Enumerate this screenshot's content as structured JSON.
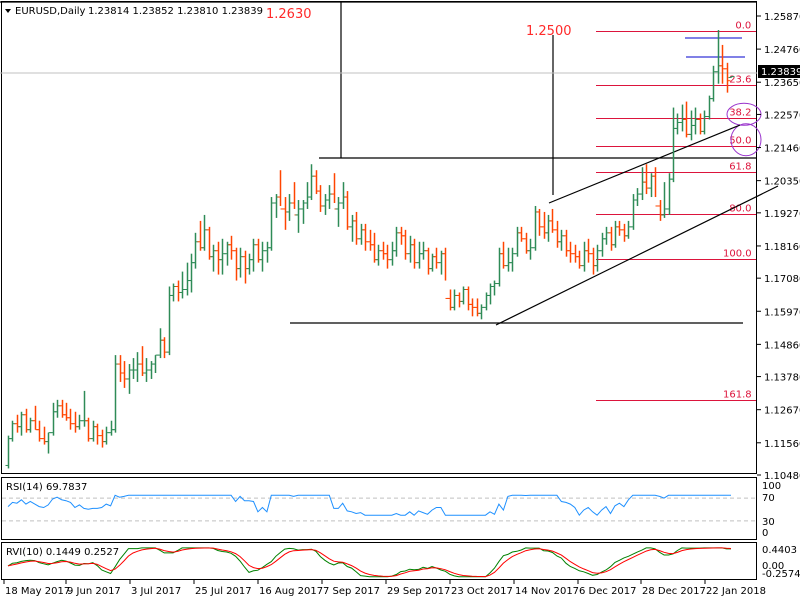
{
  "header": {
    "symbol": "EURUSD,Daily",
    "ohlc": "1.23814 1.23852 1.23810 1.23839"
  },
  "annotations": {
    "level_1": "1.2630",
    "level_2": "1.2500"
  },
  "colors": {
    "bull": "#2e8b57",
    "bear": "#ff4500",
    "fib": "#dc143c",
    "rsi": "#1e90ff",
    "rvi_main": "#008000",
    "rvi_signal": "#ff0000",
    "ellipse": "#9932cc",
    "blue_lines": "#0000cd"
  },
  "price_axis": {
    "ticks": [
      "1.25870",
      "1.24760",
      "1.23650",
      "1.22570",
      "1.21460",
      "1.20350",
      "1.19270",
      "1.18160",
      "1.17080",
      "1.15970",
      "1.14860",
      "1.13780",
      "1.12670",
      "1.11560",
      "1.10480"
    ],
    "current_price": "1.23839"
  },
  "fib_levels": [
    "0.0",
    "23.6",
    "38.2",
    "50.0",
    "61.8",
    "80.0",
    "100.0",
    "161.8"
  ],
  "rsi": {
    "label": "RSI(14) 69.7837",
    "ticks": [
      "100",
      "70",
      "30",
      "0"
    ]
  },
  "rvi": {
    "label": "RVI(10) 0.1449 0.2527",
    "ticks": [
      "0.4403",
      "0.00",
      "-0.2574"
    ]
  },
  "time_axis": {
    "labels": [
      "18 May 2017",
      "9 Jun 2017",
      "3 Jul 2017",
      "25 Jul 2017",
      "16 Aug 2017",
      "7 Sep 2017",
      "29 Sep 2017",
      "23 Oct 2017",
      "14 Nov 2017",
      "6 Dec 2017",
      "28 Dec 2017",
      "22 Jan 2018"
    ]
  },
  "chart_data": {
    "type": "ohlc",
    "title": "EURUSD,Daily 1.23814 1.23852 1.23810 1.23839",
    "xlabel": "",
    "ylabel": "",
    "ylim": [
      1.1048,
      1.2587
    ],
    "categories": [
      "18 May 2017",
      "9 Jun 2017",
      "3 Jul 2017",
      "25 Jul 2017",
      "16 Aug 2017",
      "7 Sep 2017",
      "29 Sep 2017",
      "23 Oct 2017",
      "14 Nov 2017",
      "6 Dec 2017",
      "28 Dec 2017",
      "22 Jan 2018"
    ],
    "approx_close_at_labels": [
      1.117,
      1.12,
      1.142,
      1.172,
      1.182,
      1.205,
      1.18,
      1.176,
      1.18,
      1.177,
      1.194,
      1.238
    ],
    "bars": [
      [
        1.108,
        1.118,
        1.107,
        1.117
      ],
      [
        1.117,
        1.123,
        1.116,
        1.122
      ],
      [
        1.122,
        1.125,
        1.119,
        1.121
      ],
      [
        1.121,
        1.126,
        1.118,
        1.125
      ],
      [
        1.125,
        1.127,
        1.119,
        1.12
      ],
      [
        1.12,
        1.124,
        1.119,
        1.123
      ],
      [
        1.123,
        1.128,
        1.12,
        1.12
      ],
      [
        1.12,
        1.123,
        1.116,
        1.117
      ],
      [
        1.117,
        1.121,
        1.115,
        1.116
      ],
      [
        1.116,
        1.119,
        1.112,
        1.119
      ],
      [
        1.119,
        1.129,
        1.118,
        1.126
      ],
      [
        1.126,
        1.13,
        1.124,
        1.128
      ],
      [
        1.128,
        1.13,
        1.124,
        1.125
      ],
      [
        1.125,
        1.129,
        1.123,
        1.124
      ],
      [
        1.124,
        1.127,
        1.12,
        1.122
      ],
      [
        1.122,
        1.126,
        1.119,
        1.121
      ],
      [
        1.121,
        1.125,
        1.12,
        1.123
      ],
      [
        1.123,
        1.133,
        1.121,
        1.123
      ],
      [
        1.123,
        1.124,
        1.116,
        1.117
      ],
      [
        1.117,
        1.123,
        1.116,
        1.121
      ],
      [
        1.121,
        1.122,
        1.115,
        1.118
      ],
      [
        1.118,
        1.12,
        1.114,
        1.116
      ],
      [
        1.116,
        1.121,
        1.115,
        1.119
      ],
      [
        1.119,
        1.123,
        1.118,
        1.12
      ],
      [
        1.12,
        1.145,
        1.119,
        1.142
      ],
      [
        1.142,
        1.145,
        1.136,
        1.139
      ],
      [
        1.139,
        1.143,
        1.134,
        1.137
      ],
      [
        1.137,
        1.142,
        1.132,
        1.14
      ],
      [
        1.14,
        1.144,
        1.137,
        1.14
      ],
      [
        1.14,
        1.146,
        1.136,
        1.142
      ],
      [
        1.142,
        1.148,
        1.138,
        1.139
      ],
      [
        1.139,
        1.144,
        1.136,
        1.14
      ],
      [
        1.14,
        1.143,
        1.137,
        1.142
      ],
      [
        1.142,
        1.145,
        1.139,
        1.145
      ],
      [
        1.145,
        1.154,
        1.144,
        1.15
      ],
      [
        1.15,
        1.151,
        1.144,
        1.146
      ],
      [
        1.146,
        1.168,
        1.145,
        1.165
      ],
      [
        1.165,
        1.169,
        1.163,
        1.168
      ],
      [
        1.168,
        1.17,
        1.163,
        1.166
      ],
      [
        1.166,
        1.173,
        1.164,
        1.167
      ],
      [
        1.167,
        1.176,
        1.165,
        1.17
      ],
      [
        1.17,
        1.179,
        1.166,
        1.176
      ],
      [
        1.176,
        1.186,
        1.174,
        1.183
      ],
      [
        1.183,
        1.19,
        1.18,
        1.181
      ],
      [
        1.181,
        1.192,
        1.18,
        1.187
      ],
      [
        1.187,
        1.188,
        1.177,
        1.178
      ],
      [
        1.178,
        1.182,
        1.173,
        1.18
      ],
      [
        1.18,
        1.183,
        1.172,
        1.177
      ],
      [
        1.177,
        1.184,
        1.172,
        1.179
      ],
      [
        1.179,
        1.183,
        1.175,
        1.182
      ],
      [
        1.182,
        1.185,
        1.177,
        1.18
      ],
      [
        1.18,
        1.181,
        1.17,
        1.174
      ],
      [
        1.174,
        1.181,
        1.171,
        1.178
      ],
      [
        1.178,
        1.18,
        1.169,
        1.174
      ],
      [
        1.174,
        1.179,
        1.172,
        1.177
      ],
      [
        1.177,
        1.184,
        1.173,
        1.182
      ],
      [
        1.182,
        1.184,
        1.176,
        1.177
      ],
      [
        1.177,
        1.183,
        1.173,
        1.18
      ],
      [
        1.18,
        1.183,
        1.176,
        1.181
      ],
      [
        1.181,
        1.198,
        1.18,
        1.196
      ],
      [
        1.196,
        1.199,
        1.191,
        1.198
      ],
      [
        1.198,
        1.207,
        1.195,
        1.194
      ],
      [
        1.194,
        1.198,
        1.187,
        1.193
      ],
      [
        1.193,
        1.199,
        1.19,
        1.196
      ],
      [
        1.196,
        1.203,
        1.194,
        1.192
      ],
      [
        1.192,
        1.197,
        1.186,
        1.194
      ],
      [
        1.194,
        1.197,
        1.189,
        1.196
      ],
      [
        1.196,
        1.203,
        1.194,
        1.198
      ],
      [
        1.198,
        1.209,
        1.197,
        1.205
      ],
      [
        1.205,
        1.207,
        1.199,
        1.2
      ],
      [
        1.2,
        1.202,
        1.193,
        1.195
      ],
      [
        1.195,
        1.199,
        1.192,
        1.197
      ],
      [
        1.197,
        1.202,
        1.194,
        1.199
      ],
      [
        1.199,
        1.206,
        1.196,
        1.194
      ],
      [
        1.194,
        1.198,
        1.188,
        1.196
      ],
      [
        1.196,
        1.203,
        1.194,
        1.198
      ],
      [
        1.198,
        1.2,
        1.187,
        1.188
      ],
      [
        1.188,
        1.192,
        1.183,
        1.19
      ],
      [
        1.19,
        1.193,
        1.182,
        1.184
      ],
      [
        1.184,
        1.189,
        1.182,
        1.187
      ],
      [
        1.187,
        1.189,
        1.18,
        1.183
      ],
      [
        1.183,
        1.187,
        1.18,
        1.182
      ],
      [
        1.182,
        1.186,
        1.176,
        1.177
      ],
      [
        1.177,
        1.182,
        1.175,
        1.18
      ],
      [
        1.18,
        1.183,
        1.177,
        1.179
      ],
      [
        1.179,
        1.182,
        1.174,
        1.177
      ],
      [
        1.177,
        1.183,
        1.175,
        1.18
      ],
      [
        1.18,
        1.188,
        1.178,
        1.186
      ],
      [
        1.186,
        1.188,
        1.182,
        1.185
      ],
      [
        1.185,
        1.187,
        1.177,
        1.179
      ],
      [
        1.179,
        1.185,
        1.176,
        1.182
      ],
      [
        1.182,
        1.184,
        1.174,
        1.176
      ],
      [
        1.176,
        1.183,
        1.174,
        1.179
      ],
      [
        1.179,
        1.183,
        1.177,
        1.18
      ],
      [
        1.18,
        1.181,
        1.172,
        1.174
      ],
      [
        1.174,
        1.179,
        1.173,
        1.178
      ],
      [
        1.178,
        1.181,
        1.174,
        1.176
      ],
      [
        1.176,
        1.18,
        1.172,
        1.179
      ],
      [
        1.179,
        1.181,
        1.17,
        1.164
      ],
      [
        1.164,
        1.167,
        1.16,
        1.161
      ],
      [
        1.161,
        1.167,
        1.16,
        1.165
      ],
      [
        1.165,
        1.166,
        1.161,
        1.163
      ],
      [
        1.163,
        1.168,
        1.162,
        1.167
      ],
      [
        1.167,
        1.168,
        1.16,
        1.162
      ],
      [
        1.162,
        1.164,
        1.158,
        1.161
      ],
      [
        1.161,
        1.164,
        1.158,
        1.159
      ],
      [
        1.159,
        1.162,
        1.157,
        1.161
      ],
      [
        1.161,
        1.166,
        1.16,
        1.165
      ],
      [
        1.165,
        1.169,
        1.162,
        1.168
      ],
      [
        1.168,
        1.17,
        1.165,
        1.169
      ],
      [
        1.169,
        1.181,
        1.168,
        1.179
      ],
      [
        1.179,
        1.183,
        1.174,
        1.175
      ],
      [
        1.175,
        1.181,
        1.173,
        1.176
      ],
      [
        1.176,
        1.181,
        1.173,
        1.179
      ],
      [
        1.179,
        1.188,
        1.178,
        1.186
      ],
      [
        1.186,
        1.188,
        1.183,
        1.184
      ],
      [
        1.184,
        1.186,
        1.179,
        1.18
      ],
      [
        1.18,
        1.184,
        1.177,
        1.181
      ],
      [
        1.181,
        1.195,
        1.18,
        1.193
      ],
      [
        1.193,
        1.194,
        1.185,
        1.188
      ],
      [
        1.188,
        1.193,
        1.184,
        1.186
      ],
      [
        1.186,
        1.192,
        1.183,
        1.19
      ],
      [
        1.19,
        1.194,
        1.186,
        1.187
      ],
      [
        1.187,
        1.19,
        1.181,
        1.183
      ],
      [
        1.183,
        1.187,
        1.18,
        1.185
      ],
      [
        1.185,
        1.187,
        1.178,
        1.18
      ],
      [
        1.18,
        1.183,
        1.176,
        1.179
      ],
      [
        1.179,
        1.182,
        1.176,
        1.178
      ],
      [
        1.178,
        1.18,
        1.174,
        1.175
      ],
      [
        1.175,
        1.183,
        1.173,
        1.18
      ],
      [
        1.18,
        1.184,
        1.176,
        1.179
      ],
      [
        1.179,
        1.181,
        1.172,
        1.175
      ],
      [
        1.175,
        1.182,
        1.173,
        1.18
      ],
      [
        1.18,
        1.186,
        1.178,
        1.184
      ],
      [
        1.184,
        1.188,
        1.182,
        1.186
      ],
      [
        1.186,
        1.188,
        1.18,
        1.182
      ],
      [
        1.182,
        1.19,
        1.181,
        1.188
      ],
      [
        1.188,
        1.19,
        1.185,
        1.187
      ],
      [
        1.187,
        1.189,
        1.183,
        1.185
      ],
      [
        1.185,
        1.19,
        1.184,
        1.188
      ],
      [
        1.188,
        1.199,
        1.187,
        1.197
      ],
      [
        1.197,
        1.201,
        1.195,
        1.199
      ],
      [
        1.199,
        1.208,
        1.197,
        1.203
      ],
      [
        1.203,
        1.209,
        1.199,
        1.201
      ],
      [
        1.201,
        1.206,
        1.198,
        1.205
      ],
      [
        1.205,
        1.208,
        1.198,
        1.195
      ],
      [
        1.195,
        1.197,
        1.19,
        1.192
      ],
      [
        1.192,
        1.203,
        1.191,
        1.194
      ],
      [
        1.194,
        1.206,
        1.192,
        1.204
      ],
      [
        1.204,
        1.228,
        1.203,
        1.221
      ],
      [
        1.221,
        1.226,
        1.219,
        1.223
      ],
      [
        1.223,
        1.229,
        1.22,
        1.224
      ],
      [
        1.224,
        1.23,
        1.218,
        1.219
      ],
      [
        1.219,
        1.227,
        1.217,
        1.222
      ],
      [
        1.222,
        1.228,
        1.219,
        1.224
      ],
      [
        1.224,
        1.226,
        1.219,
        1.22
      ],
      [
        1.22,
        1.227,
        1.219,
        1.225
      ],
      [
        1.225,
        1.232,
        1.224,
        1.231
      ],
      [
        1.231,
        1.242,
        1.23,
        1.24
      ],
      [
        1.24,
        1.254,
        1.236,
        1.242
      ],
      [
        1.242,
        1.249,
        1.236,
        1.241
      ],
      [
        1.241,
        1.243,
        1.233,
        1.237
      ],
      [
        1.2381,
        1.2385,
        1.2381,
        1.2384
      ]
    ],
    "fibonacci": {
      "0.0": 1.2537,
      "23.6": 1.2355,
      "38.2": 1.2244,
      "50.0": 1.2152,
      "61.8": 1.2063,
      "80.0": 1.1924,
      "100.0": 1.1772,
      "161.8": 1.13
    },
    "horizontal_lines": [
      1.2095,
      1.1565
    ],
    "rsi_value": 69.7837,
    "rvi_values": [
      0.1449,
      0.2527
    ]
  }
}
